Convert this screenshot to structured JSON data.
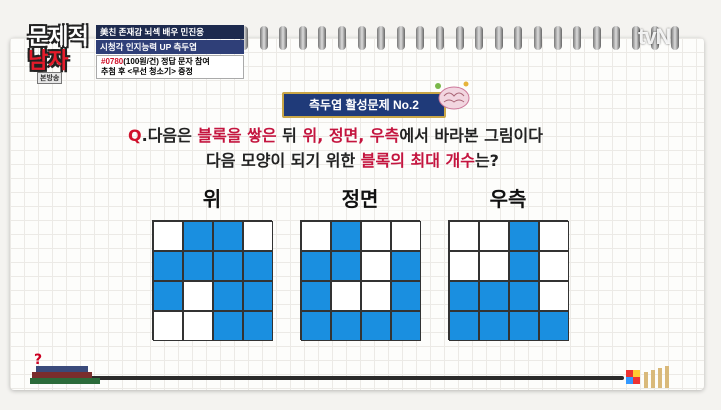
{
  "show": {
    "logo_text_line1": "문제적",
    "logo_text_line2": "남자",
    "badge": "본방송",
    "channel_logo": "tvN"
  },
  "caption": {
    "line1": "美친 존재감 뇌섹 배우 민진웅",
    "line2": "시청각 인지능력 UP 측두엽",
    "line3_code": "#0780",
    "line3_rest": "(100원/건) 정답 문자 참여",
    "line4": "추첨 후 <무선 청소기> 증정"
  },
  "problem": {
    "title": "측두엽 활성문제 No.2",
    "q_mark": "Q",
    "line1_a": ".다음은 ",
    "line1_hl1": "블록을 쌓은",
    "line1_b": " 뒤 ",
    "line1_hl2": "위, 정면, 우측",
    "line1_c": "에서 바라본 그림이다",
    "line2_a": "다음 모양이 되기 위한 ",
    "line2_hl": "블록의 최대 개수",
    "line2_b": "는?"
  },
  "views": [
    {
      "label": "위",
      "cells": [
        [
          0,
          1,
          1,
          0
        ],
        [
          1,
          1,
          1,
          1
        ],
        [
          1,
          0,
          1,
          1
        ],
        [
          0,
          0,
          1,
          1
        ]
      ]
    },
    {
      "label": "정면",
      "cells": [
        [
          0,
          1,
          0,
          0
        ],
        [
          1,
          1,
          0,
          1
        ],
        [
          1,
          0,
          0,
          1
        ],
        [
          1,
          1,
          1,
          1
        ]
      ]
    },
    {
      "label": "우측",
      "cells": [
        [
          0,
          0,
          1,
          0
        ],
        [
          0,
          0,
          1,
          0
        ],
        [
          1,
          1,
          1,
          0
        ],
        [
          1,
          1,
          1,
          1
        ]
      ]
    }
  ],
  "colors": {
    "block": "#1a8fe0",
    "highlight": "#c4153f",
    "pill_bg": "#1f3a79"
  }
}
